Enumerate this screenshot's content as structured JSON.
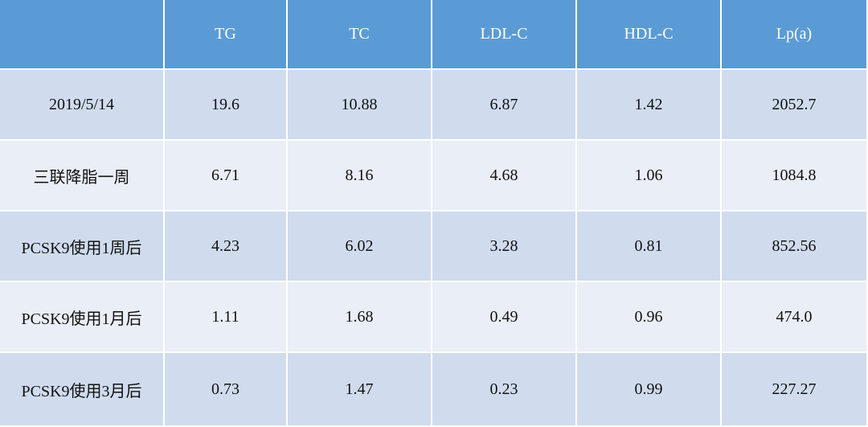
{
  "table": {
    "columns": [
      "TG",
      "TC",
      "LDL-C",
      "HDL-C",
      "Lp(a)"
    ],
    "rows": [
      {
        "label": "2019/5/14",
        "values": [
          "19.6",
          "10.88",
          "6.87",
          "1.42",
          "2052.7"
        ]
      },
      {
        "label": "三联降脂一周",
        "values": [
          "6.71",
          "8.16",
          "4.68",
          "1.06",
          "1084.8"
        ]
      },
      {
        "label": "PCSK9使用1周后",
        "values": [
          "4.23",
          "6.02",
          "3.28",
          "0.81",
          "852.56"
        ]
      },
      {
        "label": "PCSK9使用1月后",
        "values": [
          "1.11",
          "1.68",
          "0.49",
          "0.96",
          "474.0"
        ]
      },
      {
        "label": "PCSK9使用3月后",
        "values": [
          "0.73",
          "1.47",
          "0.23",
          "0.99",
          "227.27"
        ]
      }
    ]
  }
}
